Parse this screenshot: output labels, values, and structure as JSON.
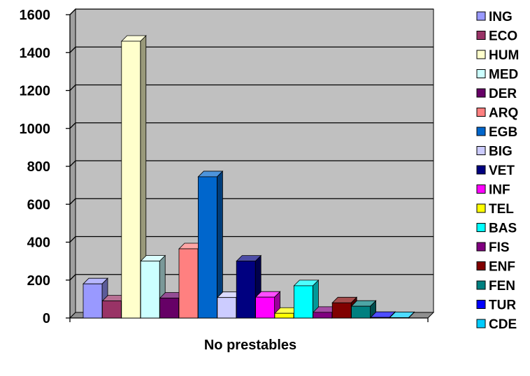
{
  "chart_data": {
    "type": "bar",
    "xlabel": "No prestables",
    "ylim": [
      0,
      1600
    ],
    "yticks": [
      0,
      200,
      400,
      600,
      800,
      1000,
      1200,
      1400,
      1600
    ],
    "grid": true,
    "legend_position": "right",
    "series": [
      {
        "name": "ING",
        "value": 180,
        "color": "#9999ff"
      },
      {
        "name": "ECO",
        "value": 90,
        "color": "#993366"
      },
      {
        "name": "HUM",
        "value": 1460,
        "color": "#ffffcc"
      },
      {
        "name": "MED",
        "value": 300,
        "color": "#ccffff"
      },
      {
        "name": "DER",
        "value": 105,
        "color": "#660066"
      },
      {
        "name": "ARQ",
        "value": 365,
        "color": "#ff8080"
      },
      {
        "name": "EGB",
        "value": 745,
        "color": "#0066cc"
      },
      {
        "name": "BIG",
        "value": 108,
        "color": "#ccccff"
      },
      {
        "name": "VET",
        "value": 300,
        "color": "#000080"
      },
      {
        "name": "INF",
        "value": 110,
        "color": "#ff00ff"
      },
      {
        "name": "TEL",
        "value": 25,
        "color": "#ffff00"
      },
      {
        "name": "BAS",
        "value": 170,
        "color": "#00ffff"
      },
      {
        "name": "FIS",
        "value": 30,
        "color": "#800080"
      },
      {
        "name": "ENF",
        "value": 80,
        "color": "#800000"
      },
      {
        "name": "FEN",
        "value": 62,
        "color": "#008080"
      },
      {
        "name": "TUR",
        "value": 3,
        "color": "#0000ff"
      },
      {
        "name": "CDE",
        "value": 2,
        "color": "#00ccff"
      }
    ]
  },
  "colors": {
    "plot_back": "#c0c0c0",
    "plot_side": "#a0a0a0",
    "plot_floor": "#909090"
  }
}
